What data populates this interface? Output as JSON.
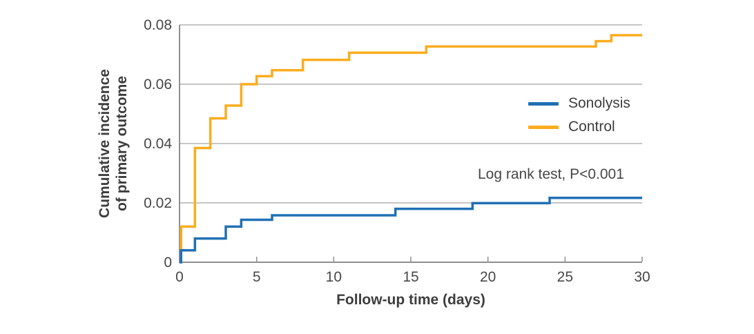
{
  "colors": {
    "sonolysis": "#2070b4",
    "control": "#fbac1e",
    "gridline": "#b4b4b4",
    "axis": "#8f8f8f",
    "tick_text": "#474747",
    "label_text": "#3d3d3d"
  },
  "chart_data": {
    "type": "line",
    "subtype": "step",
    "title": "",
    "xlabel": "Follow-up time (days)",
    "ylabel_lines": [
      "Cumulative incidence",
      "of primary outcome"
    ],
    "annotation": "Log rank test, P<0.001",
    "xlim": [
      0,
      30
    ],
    "ylim": [
      0,
      0.08
    ],
    "x_ticks": [
      0,
      5,
      10,
      15,
      20,
      25,
      30
    ],
    "x_tick_labels": [
      "0",
      "5",
      "10",
      "15",
      "20",
      "25",
      "30"
    ],
    "y_ticks": [
      0,
      0.02,
      0.04,
      0.06,
      0.08
    ],
    "y_tick_labels": [
      "0",
      "0.02",
      "0.04",
      "0.06",
      "0.08"
    ],
    "grid": "horizontal gridlines at each y tick",
    "legend_position": "right-middle",
    "series": [
      {
        "name": "Sonolysis",
        "color": "#2070b4",
        "points": [
          [
            0,
            0
          ],
          [
            0.1,
            0.004
          ],
          [
            1,
            0.008
          ],
          [
            3,
            0.012
          ],
          [
            4,
            0.0143
          ],
          [
            6,
            0.0158
          ],
          [
            14,
            0.018
          ],
          [
            19,
            0.0199
          ],
          [
            24,
            0.0217
          ],
          [
            30,
            0.0217
          ]
        ]
      },
      {
        "name": "Control",
        "color": "#fbac1e",
        "points": [
          [
            0,
            0
          ],
          [
            0.1,
            0.012
          ],
          [
            1,
            0.0385
          ],
          [
            2,
            0.0485
          ],
          [
            3,
            0.0528
          ],
          [
            4,
            0.06
          ],
          [
            5,
            0.0627
          ],
          [
            6,
            0.0647
          ],
          [
            8,
            0.0682
          ],
          [
            11,
            0.0706
          ],
          [
            16,
            0.0727
          ],
          [
            27,
            0.0745
          ],
          [
            28,
            0.0765
          ],
          [
            30,
            0.0765
          ]
        ]
      }
    ]
  }
}
